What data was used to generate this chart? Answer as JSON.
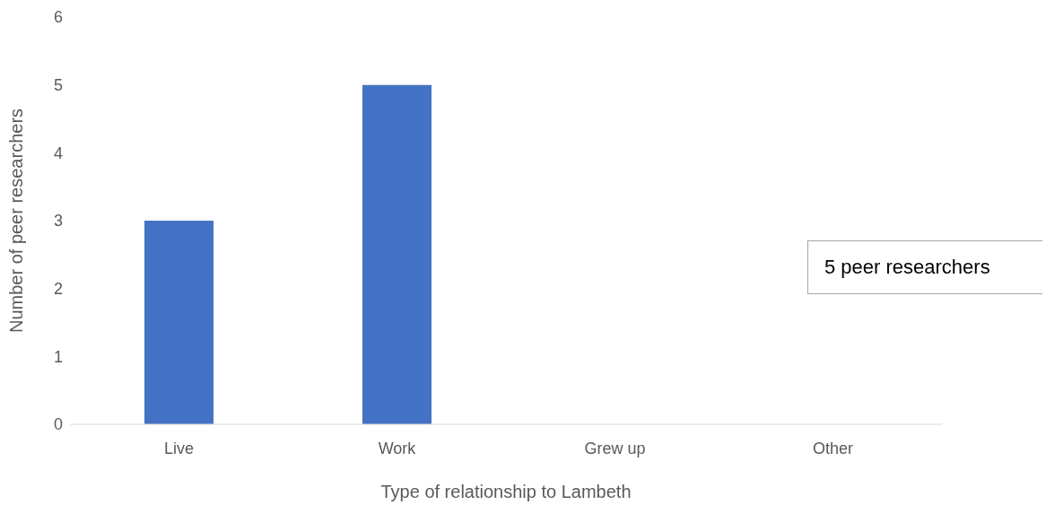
{
  "chart_data": {
    "type": "bar",
    "xlabel": "Type of relationship to Lambeth",
    "ylabel": "Number of peer researchers",
    "categories": [
      "Live",
      "Work",
      "Grew up",
      "Other"
    ],
    "values": [
      3,
      5,
      0,
      0
    ],
    "color": "#4472c4",
    "ylim": [
      0,
      6
    ],
    "yticks": [
      0,
      1,
      2,
      3,
      4,
      5,
      6
    ],
    "annotations": [
      "5 peer researchers"
    ]
  }
}
